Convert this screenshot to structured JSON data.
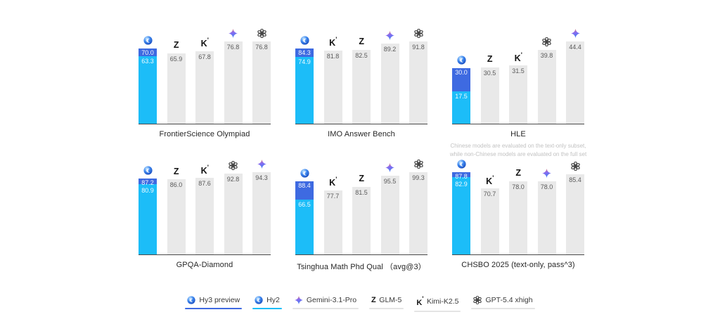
{
  "page": {
    "background": "#ffffff"
  },
  "colors": {
    "hy3_blue": "#3e6ae1",
    "hy2_cyan": "#1cbdf8",
    "bar_gray": "#e9e9e9",
    "axis_line": "#4a4a4a",
    "value_text_gray": "#5a5a5a",
    "title_text": "#262626",
    "footnote_text": "#c2c2c2",
    "legend_underline_gray": "#e4e4e4"
  },
  "models": {
    "hy3": {
      "label": "Hy3 preview",
      "icon": "hunyuan-sphere-icon"
    },
    "hy2": {
      "label": "Hy2",
      "icon": "hunyuan-sphere-icon"
    },
    "gemini": {
      "label": "Gemini-3.1-Pro",
      "icon": "gemini-star-icon"
    },
    "glm": {
      "label": "GLM-5",
      "icon": "glm-z-icon"
    },
    "kimi": {
      "label": "Kimi-K2.5",
      "icon": "kimi-k-icon"
    },
    "gpt": {
      "label": "GPT-5.4 xhigh",
      "icon": "gpt-flower-icon"
    }
  },
  "legend": {
    "items": [
      {
        "id": "hy3",
        "label": "Hy3 preview",
        "icon": "hunyuan-sphere-icon",
        "underline": "#3e6ae1"
      },
      {
        "id": "hy2",
        "label": "Hy2",
        "icon": "hunyuan-sphere-icon",
        "underline": "#1cbdf8"
      },
      {
        "id": "gemini",
        "label": "Gemini-3.1-Pro",
        "icon": "gemini-star-icon",
        "underline": "#e4e4e4"
      },
      {
        "id": "glm",
        "label": "GLM-5",
        "icon": "glm-z-icon",
        "underline": "#e4e4e4"
      },
      {
        "id": "kimi",
        "label": "Kimi-K2.5",
        "icon": "kimi-k-icon",
        "underline": "#e4e4e4"
      },
      {
        "id": "gpt",
        "label": "GPT-5.4 xhigh",
        "icon": "gpt-flower-icon",
        "underline": "#e4e4e4"
      }
    ]
  },
  "chart_data": [
    {
      "type": "bar",
      "title": "FrontierScience Olympiad",
      "grid": false,
      "ylim": [
        0,
        76.8
      ],
      "bars": [
        {
          "model": "Hy3 preview / Hy2",
          "icon": "hunyuan-sphere-icon",
          "stacked": true,
          "hy3": 70.0,
          "hy2": 63.3
        },
        {
          "model": "GLM-5",
          "icon": "glm-z-icon",
          "value": 65.9
        },
        {
          "model": "Kimi-K2.5",
          "icon": "kimi-k-icon",
          "value": 67.8
        },
        {
          "model": "Gemini-3.1-Pro",
          "icon": "gemini-star-icon",
          "value": 76.8
        },
        {
          "model": "GPT-5.4 xhigh",
          "icon": "gpt-flower-icon",
          "value": 76.8
        }
      ]
    },
    {
      "type": "bar",
      "title": "IMO Answer Bench",
      "grid": false,
      "ylim": [
        0,
        91.8
      ],
      "bars": [
        {
          "model": "Hy3 preview / Hy2",
          "icon": "hunyuan-sphere-icon",
          "stacked": true,
          "hy3": 84.3,
          "hy2": 74.9
        },
        {
          "model": "Kimi-K2.5",
          "icon": "kimi-k-icon",
          "value": 81.8
        },
        {
          "model": "GLM-5",
          "icon": "glm-z-icon",
          "value": 82.5
        },
        {
          "model": "Gemini-3.1-Pro",
          "icon": "gemini-star-icon",
          "value": 89.2
        },
        {
          "model": "GPT-5.4 xhigh",
          "icon": "gpt-flower-icon",
          "value": 91.8
        }
      ]
    },
    {
      "type": "bar",
      "title": "HLE",
      "grid": false,
      "ylim": [
        0,
        44.4
      ],
      "footnote_lines": [
        "Chinese models are evaluated on the text-only subset,",
        "while non-Chinese models are evaluated on the full set"
      ],
      "bars": [
        {
          "model": "Hy3 preview / Hy2",
          "icon": "hunyuan-sphere-icon",
          "stacked": true,
          "hy3": 30.0,
          "hy2": 17.5
        },
        {
          "model": "GLM-5",
          "icon": "glm-z-icon",
          "value": 30.5
        },
        {
          "model": "Kimi-K2.5",
          "icon": "kimi-k-icon",
          "value": 31.5
        },
        {
          "model": "GPT-5.4 xhigh",
          "icon": "gpt-flower-icon",
          "value": 39.8
        },
        {
          "model": "Gemini-3.1-Pro",
          "icon": "gemini-star-icon",
          "value": 44.4
        }
      ]
    },
    {
      "type": "bar",
      "title": "GPQA-Diamond",
      "grid": false,
      "ylim": [
        0,
        94.3
      ],
      "bars": [
        {
          "model": "Hy3 preview / Hy2",
          "icon": "hunyuan-sphere-icon",
          "stacked": true,
          "hy3": 87.2,
          "hy2": 80.9
        },
        {
          "model": "GLM-5",
          "icon": "glm-z-icon",
          "value": 86.0
        },
        {
          "model": "Kimi-K2.5",
          "icon": "kimi-k-icon",
          "value": 87.6
        },
        {
          "model": "GPT-5.4 xhigh",
          "icon": "gpt-flower-icon",
          "value": 92.8
        },
        {
          "model": "Gemini-3.1-Pro",
          "icon": "gemini-star-icon",
          "value": 94.3
        }
      ]
    },
    {
      "type": "bar",
      "title": "Tsinghua Math Phd Qual （avg@3）",
      "grid": false,
      "ylim": [
        0,
        99.3
      ],
      "bars": [
        {
          "model": "Hy3 preview / Hy2",
          "icon": "hunyuan-sphere-icon",
          "stacked": true,
          "hy3": 88.4,
          "hy2": 66.5
        },
        {
          "model": "Kimi-K2.5",
          "icon": "kimi-k-icon",
          "value": 77.7
        },
        {
          "model": "GLM-5",
          "icon": "glm-z-icon",
          "value": 81.5
        },
        {
          "model": "Gemini-3.1-Pro",
          "icon": "gemini-star-icon",
          "value": 95.5
        },
        {
          "model": "GPT-5.4 xhigh",
          "icon": "gpt-flower-icon",
          "value": 99.3
        }
      ]
    },
    {
      "type": "bar",
      "title": "CHSBO 2025 (text-only, pass^3)",
      "grid": false,
      "ylim": [
        0,
        87.8
      ],
      "bars": [
        {
          "model": "Hy3 preview / Hy2",
          "icon": "hunyuan-sphere-icon",
          "stacked": true,
          "hy3": 87.8,
          "hy2": 82.9
        },
        {
          "model": "Kimi-K2.5",
          "icon": "kimi-k-icon",
          "value": 70.7
        },
        {
          "model": "GLM-5",
          "icon": "glm-z-icon",
          "value": 78.0
        },
        {
          "model": "Gemini-3.1-Pro",
          "icon": "gemini-star-icon",
          "value": 78.0
        },
        {
          "model": "GPT-5.4 xhigh",
          "icon": "gpt-flower-icon",
          "value": 85.4
        }
      ]
    }
  ]
}
